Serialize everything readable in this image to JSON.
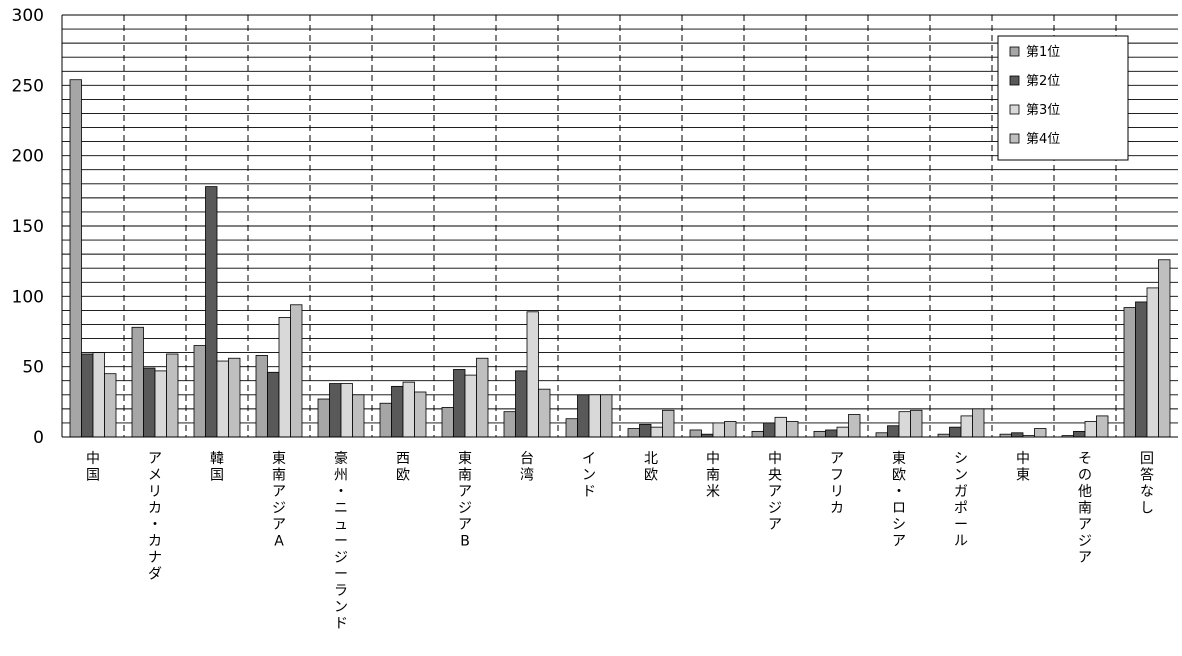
{
  "chart_data": {
    "type": "bar",
    "categories": [
      "中国",
      "アメリカ・カナダ",
      "韓国",
      "東南アジアA",
      "豪州・ニュージーランド",
      "西欧",
      "東南アジアB",
      "台湾",
      "インド",
      "北欧",
      "中南米",
      "中央アジア",
      "アフリカ",
      "東欧・ロシア",
      "シンガポール",
      "中東",
      "その他南アジア",
      "回答なし"
    ],
    "series": [
      {
        "name": "第1位",
        "color": "#a6a6a6",
        "values": [
          254,
          78,
          65,
          58,
          27,
          24,
          21,
          18,
          13,
          6,
          5,
          4,
          4,
          3,
          2,
          2,
          1,
          92
        ]
      },
      {
        "name": "第2位",
        "color": "#595959",
        "values": [
          59,
          49,
          178,
          46,
          38,
          36,
          48,
          47,
          30,
          9,
          2,
          10,
          5,
          8,
          7,
          3,
          4,
          96
        ]
      },
      {
        "name": "第3位",
        "color": "#d9d9d9",
        "values": [
          60,
          47,
          54,
          85,
          38,
          39,
          44,
          89,
          30,
          7,
          10,
          14,
          7,
          18,
          15,
          1,
          11,
          106
        ]
      },
      {
        "name": "第4位",
        "color": "#bfbfbf",
        "values": [
          45,
          59,
          56,
          94,
          30,
          32,
          56,
          34,
          30,
          19,
          11,
          11,
          16,
          19,
          20,
          6,
          15,
          126
        ]
      }
    ],
    "ylim": [
      0,
      300
    ],
    "yticks": [
      0,
      50,
      100,
      150,
      200,
      250,
      300
    ],
    "ytick_labels": [
      "0",
      "50",
      "100",
      "150",
      "200",
      "250",
      "300"
    ],
    "minor_grid_step": 10,
    "grid": true,
    "legend_position": "top-right",
    "title": "",
    "xlabel": "",
    "ylabel": ""
  }
}
